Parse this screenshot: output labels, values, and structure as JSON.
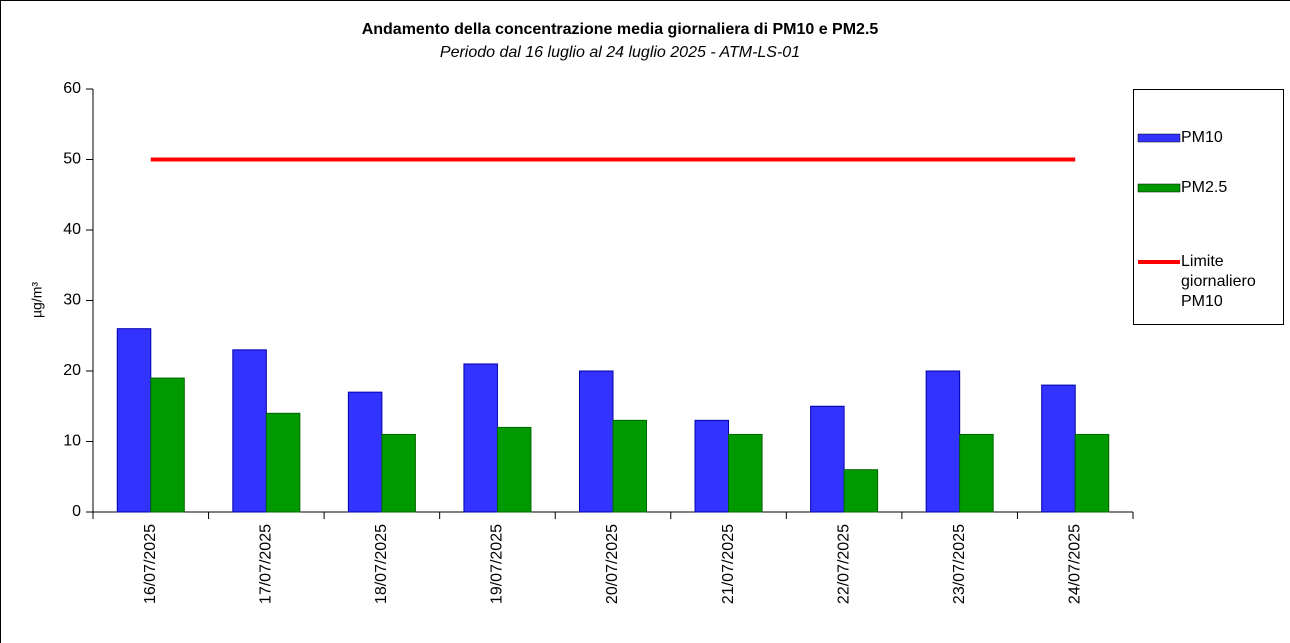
{
  "chart_data": {
    "type": "bar",
    "title": "Andamento della concentrazione media giornaliera di PM10 e PM2.5",
    "subtitle": "Periodo dal 16 luglio al 24 luglio 2025 - ATM-LS-01",
    "y_label": "µg/m³",
    "categories": [
      "16/07/2025",
      "17/07/2025",
      "18/07/2025",
      "19/07/2025",
      "20/07/2025",
      "21/07/2025",
      "22/07/2025",
      "23/07/2025",
      "24/07/2025"
    ],
    "series": [
      {
        "name": "PM10",
        "type": "bar",
        "color": "#3333ff",
        "values": [
          26,
          23,
          17,
          21,
          20,
          13,
          15,
          20,
          18
        ]
      },
      {
        "name": "PM2.5",
        "type": "bar",
        "color": "#009900",
        "values": [
          19,
          14,
          11,
          12,
          13,
          11,
          6,
          11,
          11
        ]
      },
      {
        "name": "Limite giornaliero PM10",
        "type": "line",
        "color": "#ff0000",
        "values": [
          50,
          50,
          50,
          50,
          50,
          50,
          50,
          50,
          50
        ]
      }
    ],
    "ylim": [
      0,
      60
    ],
    "yticks": [
      0,
      10,
      20,
      30,
      40,
      50,
      60
    ],
    "legend": "right"
  }
}
